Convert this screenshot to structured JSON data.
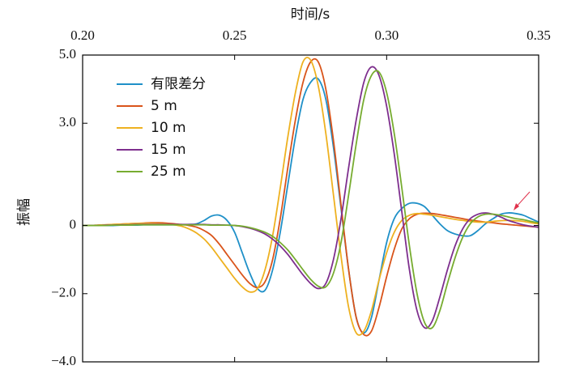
{
  "chart_data": {
    "type": "line",
    "x_label": "时间/s",
    "y_label": "振幅",
    "x": [
      0.2,
      0.2025,
      0.205,
      0.2075,
      0.21,
      0.2125,
      0.215,
      0.2175,
      0.22,
      0.2225,
      0.225,
      0.2275,
      0.23,
      0.2325,
      0.235,
      0.2375,
      0.24,
      0.2425,
      0.245,
      0.2475,
      0.25,
      0.2525,
      0.255,
      0.2575,
      0.26,
      0.2625,
      0.265,
      0.2675,
      0.27,
      0.2725,
      0.275,
      0.2775,
      0.28,
      0.2825,
      0.285,
      0.2875,
      0.29,
      0.2925,
      0.295,
      0.2975,
      0.3,
      0.3025,
      0.305,
      0.3075,
      0.31,
      0.3125,
      0.315,
      0.3175,
      0.32,
      0.3225,
      0.325,
      0.3275,
      0.33,
      0.3325,
      0.335,
      0.3375,
      0.34,
      0.3425,
      0.345,
      0.3475,
      0.35
    ],
    "series": [
      {
        "name": "有限差分",
        "color": "#1f90c8",
        "values": [
          0,
          0,
          0,
          0,
          0,
          0.01,
          0.01,
          0.01,
          0.02,
          0.02,
          0.02,
          0.02,
          0.02,
          0.02,
          0.03,
          0.05,
          0.15,
          0.28,
          0.3,
          0.15,
          -0.2,
          -0.8,
          -1.4,
          -1.85,
          -1.9,
          -1.3,
          -0.2,
          1.2,
          2.6,
          3.7,
          4.2,
          4.3,
          3.7,
          2.3,
          0.5,
          -1.3,
          -2.7,
          -3.15,
          -2.7,
          -1.6,
          -0.5,
          0.2,
          0.5,
          0.65,
          0.65,
          0.55,
          0.3,
          0.05,
          -0.15,
          -0.25,
          -0.3,
          -0.3,
          -0.15,
          0.05,
          0.2,
          0.33,
          0.37,
          0.35,
          0.3,
          0.2,
          0.1
        ]
      },
      {
        "name": "5 m",
        "color": "#d9541a",
        "values": [
          0,
          0,
          0.01,
          0.02,
          0.03,
          0.04,
          0.05,
          0.06,
          0.07,
          0.08,
          0.08,
          0.07,
          0.05,
          0.03,
          0,
          -0.05,
          -0.15,
          -0.3,
          -0.55,
          -0.85,
          -1.15,
          -1.45,
          -1.7,
          -1.82,
          -1.65,
          -1.0,
          0.2,
          1.7,
          3.1,
          4.2,
          4.8,
          4.8,
          4.0,
          2.5,
          0.6,
          -1.3,
          -2.7,
          -3.2,
          -3.1,
          -2.4,
          -1.5,
          -0.7,
          -0.1,
          0.2,
          0.33,
          0.36,
          0.35,
          0.32,
          0.28,
          0.24,
          0.2,
          0.16,
          0.13,
          0.1,
          0.08,
          0.05,
          0.03,
          0.01,
          -0.01,
          -0.03,
          -0.05
        ]
      },
      {
        "name": "10 m",
        "color": "#eeb120",
        "values": [
          0,
          0,
          0.01,
          0.02,
          0.03,
          0.04,
          0.05,
          0.06,
          0.06,
          0.06,
          0.05,
          0.04,
          0.02,
          -0.02,
          -0.1,
          -0.22,
          -0.4,
          -0.65,
          -0.95,
          -1.25,
          -1.55,
          -1.8,
          -1.95,
          -1.85,
          -1.3,
          -0.3,
          1.1,
          2.6,
          3.9,
          4.8,
          4.85,
          4.1,
          2.7,
          0.9,
          -0.9,
          -2.4,
          -3.15,
          -3.1,
          -2.5,
          -1.6,
          -0.8,
          -0.2,
          0.15,
          0.3,
          0.35,
          0.33,
          0.3,
          0.26,
          0.22,
          0.18,
          0.15,
          0.12,
          0.1,
          0.1,
          0.12,
          0.14,
          0.15,
          0.14,
          0.12,
          0.08,
          0.05
        ]
      },
      {
        "name": "15 m",
        "color": "#7e2f8e",
        "values": [
          0,
          0,
          0,
          0.01,
          0.01,
          0.02,
          0.02,
          0.03,
          0.03,
          0.03,
          0.03,
          0.03,
          0.03,
          0.03,
          0.03,
          0.03,
          0.03,
          0.02,
          0.02,
          0.01,
          0,
          -0.03,
          -0.08,
          -0.15,
          -0.25,
          -0.4,
          -0.6,
          -0.85,
          -1.15,
          -1.45,
          -1.7,
          -1.85,
          -1.7,
          -1.0,
          0.2,
          1.7,
          3.1,
          4.2,
          4.65,
          4.4,
          3.5,
          2.1,
          0.4,
          -1.3,
          -2.5,
          -3.0,
          -2.8,
          -2.1,
          -1.3,
          -0.6,
          -0.1,
          0.2,
          0.33,
          0.37,
          0.33,
          0.25,
          0.15,
          0.08,
          0.02,
          -0.02,
          -0.05
        ]
      },
      {
        "name": "25 m",
        "color": "#77ac30",
        "values": [
          0,
          0,
          0,
          0,
          0.01,
          0.01,
          0.01,
          0.02,
          0.02,
          0.02,
          0.02,
          0.02,
          0.02,
          0.02,
          0.02,
          0.02,
          0.02,
          0.01,
          0.01,
          0.01,
          0,
          -0.02,
          -0.06,
          -0.12,
          -0.2,
          -0.32,
          -0.5,
          -0.72,
          -1.0,
          -1.3,
          -1.58,
          -1.78,
          -1.8,
          -1.4,
          -0.5,
          0.9,
          2.4,
          3.7,
          4.4,
          4.5,
          3.9,
          2.7,
          1.1,
          -0.6,
          -2.0,
          -2.85,
          -3.0,
          -2.5,
          -1.7,
          -0.95,
          -0.35,
          0.05,
          0.25,
          0.33,
          0.33,
          0.3,
          0.25,
          0.2,
          0.17,
          0.12,
          0.08
        ]
      }
    ],
    "xlim": [
      0.2,
      0.35
    ],
    "xticks": [
      {
        "value": 0.2,
        "label": "0.20"
      },
      0.25,
      {
        "value": 0.3,
        "label": "0.30"
      },
      0.35
    ],
    "ylim": [
      -4,
      5
    ],
    "yticks": [
      {
        "value": 5,
        "label": "5.0"
      },
      {
        "value": 3,
        "label": "3.0"
      },
      0,
      {
        "value": -2,
        "label": "−2.0"
      },
      {
        "value": -4,
        "label": "−4.0"
      }
    ],
    "grid": false,
    "legend": "upper left"
  }
}
